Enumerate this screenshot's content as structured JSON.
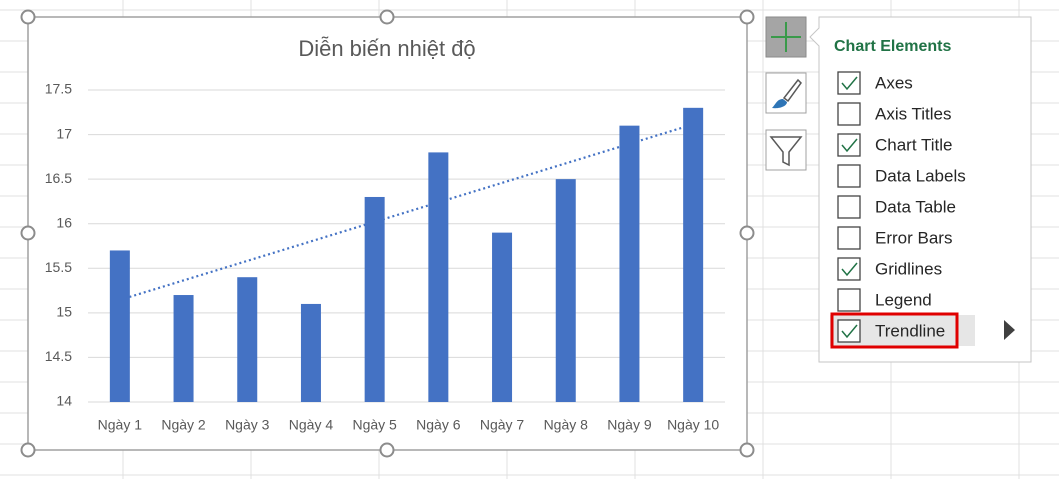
{
  "chart_data": {
    "type": "bar",
    "title": "Diễn biến nhiệt độ",
    "categories": [
      "Ngày 1",
      "Ngày 2",
      "Ngày 3",
      "Ngày 4",
      "Ngày 5",
      "Ngày 6",
      "Ngày 7",
      "Ngày 8",
      "Ngày 9",
      "Ngày 10"
    ],
    "values": [
      15.7,
      15.2,
      15.4,
      15.1,
      16.3,
      16.8,
      15.9,
      16.5,
      17.1,
      17.3
    ],
    "color": "#4472c4",
    "ylim": [
      14,
      17.5
    ],
    "yticks": [
      14,
      14.5,
      15,
      15.5,
      16,
      16.5,
      17,
      17.5
    ],
    "grid": true,
    "trendline": true
  },
  "panel": {
    "title": "Chart Elements",
    "items": [
      {
        "label": "Axes",
        "checked": true
      },
      {
        "label": "Axis Titles",
        "checked": false
      },
      {
        "label": "Chart Title",
        "checked": true
      },
      {
        "label": "Data Labels",
        "checked": false
      },
      {
        "label": "Data Table",
        "checked": false
      },
      {
        "label": "Error Bars",
        "checked": false
      },
      {
        "label": "Gridlines",
        "checked": true
      },
      {
        "label": "Legend",
        "checked": false
      },
      {
        "label": "Trendline",
        "checked": true
      }
    ]
  }
}
